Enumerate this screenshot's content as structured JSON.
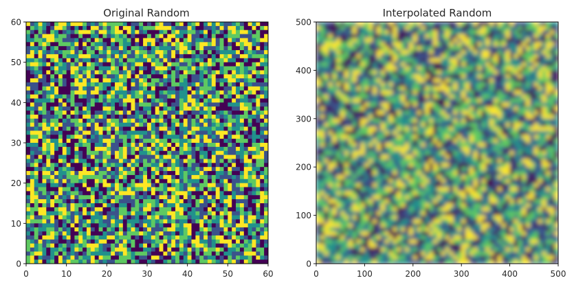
{
  "chart_data": [
    {
      "type": "heatmap",
      "title": "Original Random",
      "xlim": [
        0,
        60
      ],
      "ylim": [
        0,
        60
      ],
      "xticks": [
        0,
        10,
        20,
        30,
        40,
        50,
        60
      ],
      "yticks": [
        0,
        10,
        20,
        30,
        40,
        50,
        60
      ],
      "grid_size": 60,
      "colormap": [
        "#440154",
        "#3b528b",
        "#21918c",
        "#5ec962",
        "#fde725"
      ],
      "interpolated": false
    },
    {
      "type": "heatmap",
      "title": "Interpolated Random",
      "xlim": [
        0,
        500
      ],
      "ylim": [
        0,
        500
      ],
      "xticks": [
        0,
        100,
        200,
        300,
        400,
        500
      ],
      "yticks": [
        0,
        100,
        200,
        300,
        400,
        500
      ],
      "grid_size": 500,
      "colormap": [
        "#440154",
        "#3b528b",
        "#21918c",
        "#5ec962",
        "#fde725"
      ],
      "interpolated": true
    }
  ]
}
